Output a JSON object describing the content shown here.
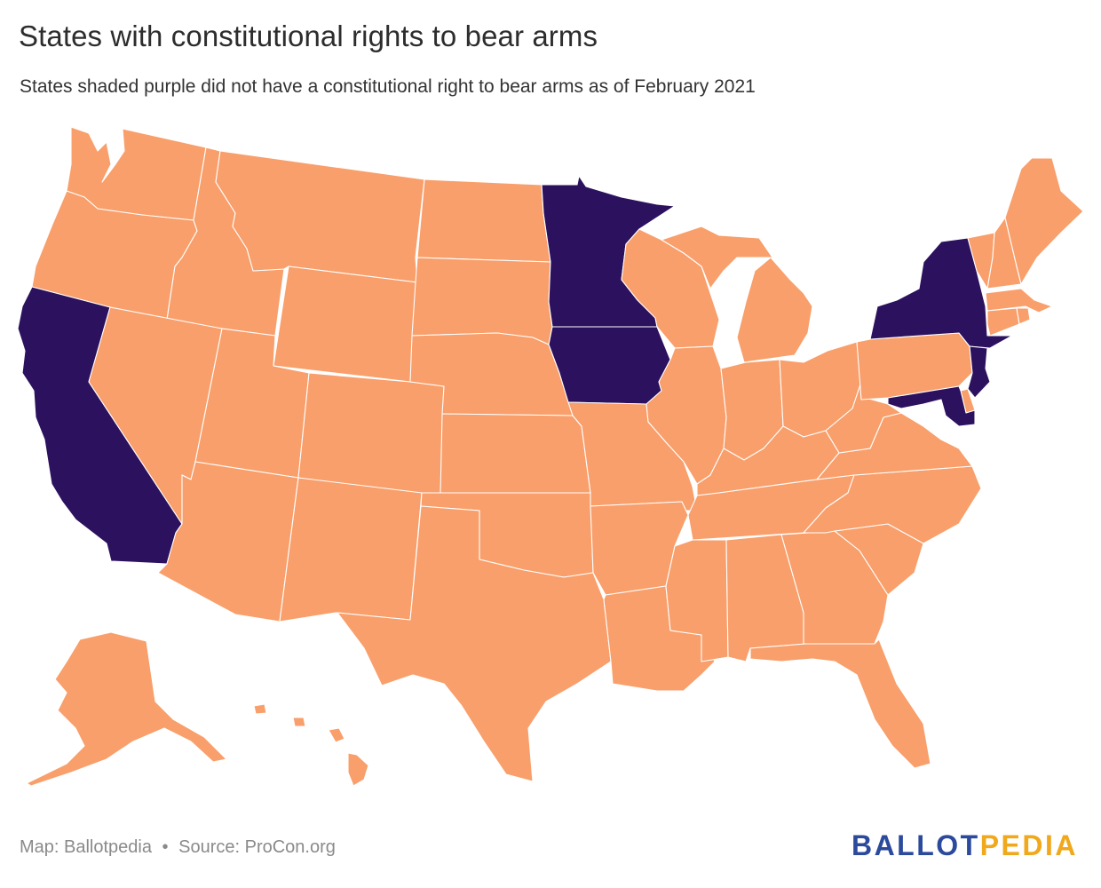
{
  "title": "States with constitutional rights to bear arms",
  "subtitle": "States shaded purple did not have a constitutional right to bear arms as of February 2021",
  "footer": {
    "map_credit": "Map: Ballotpedia",
    "separator": "•",
    "source": "Source: ProCon.org"
  },
  "logo": {
    "part1": "BALLOT",
    "part2": "PEDIA"
  },
  "colors": {
    "has_right": "#f89f6b",
    "no_right": "#2b115e",
    "logo_blue": "#2b4a9b",
    "logo_gold": "#f0a81c"
  },
  "map_data": {
    "type": "choropleth",
    "region": "United States",
    "categories": [
      {
        "key": "has_right",
        "color": "#f89f6b"
      },
      {
        "key": "no_right",
        "color": "#2b115e"
      }
    ],
    "no_right_states": [
      "California",
      "Minnesota",
      "Iowa",
      "New York",
      "New Jersey",
      "Maryland"
    ]
  }
}
